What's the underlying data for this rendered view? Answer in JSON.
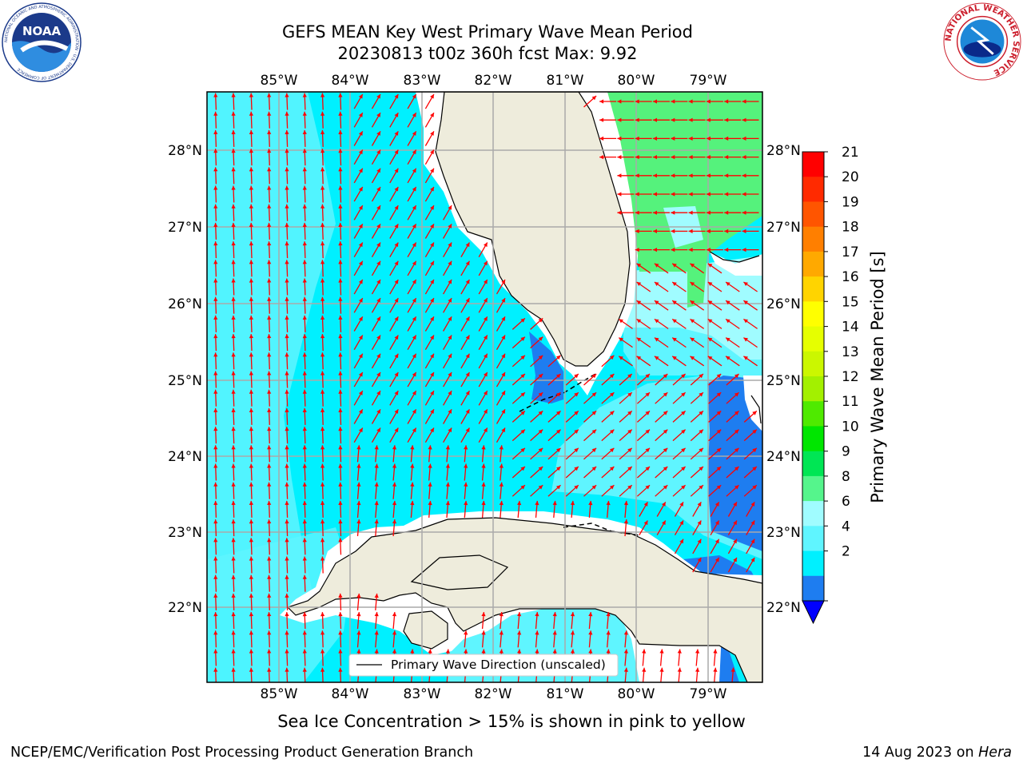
{
  "header": {
    "title_line1": "GEFS MEAN Key West Primary Wave Mean Period",
    "title_line2": "20230813 t00z 360h fcst   Max: 9.92"
  },
  "logos": {
    "left": "NOAA",
    "left_ring_text": "NATIONAL OCEANIC AND ATMOSPHERIC ADMINISTRATION · U.S. DEPARTMENT OF COMMERCE",
    "right_ring_text": "NATIONAL WEATHER SERVICE"
  },
  "map": {
    "lon_labels": [
      "85°W",
      "84°W",
      "83°W",
      "82°W",
      "81°W",
      "80°W",
      "79°W"
    ],
    "lat_labels": [
      "28°N",
      "27°N",
      "26°N",
      "25°N",
      "24°N",
      "23°N",
      "22°N"
    ],
    "legend_label": "Primary Wave Direction (unscaled)",
    "arrow_color": "#ff0000",
    "land_color": "#eeecdc",
    "field_colors": {
      "2-4": "#1e7df0",
      "4-6": "#00f0ff",
      "6-8": "#5ff5ff",
      "8-9": "#a0fcff",
      "9-10": "#55f27c"
    }
  },
  "colorbar": {
    "title": "Primary Wave Mean Period [s]",
    "ticks": [
      "21",
      "20",
      "19",
      "18",
      "17",
      "16",
      "15",
      "14",
      "13",
      "12",
      "11",
      "10",
      "9",
      "8",
      "6",
      "4",
      "2"
    ],
    "colors_top_to_bottom": [
      "#ff0000",
      "#ff2a00",
      "#ff5500",
      "#ff7f00",
      "#ffa900",
      "#ffd400",
      "#ffff00",
      "#e6ff00",
      "#cbf700",
      "#a3f000",
      "#4fea00",
      "#00e600",
      "#00e654",
      "#55f58c",
      "#a0fcff",
      "#5ff5ff",
      "#00f0ff",
      "#1e7df0"
    ],
    "extend_color": "#0000ff"
  },
  "note": "Sea Ice Concentration > 15% is shown in pink to yellow",
  "footer": {
    "left": "NCEP/EMC/Verification Post Processing Product Generation Branch",
    "right_date": "14 Aug 2023 on",
    "right_machine": "Hera"
  }
}
